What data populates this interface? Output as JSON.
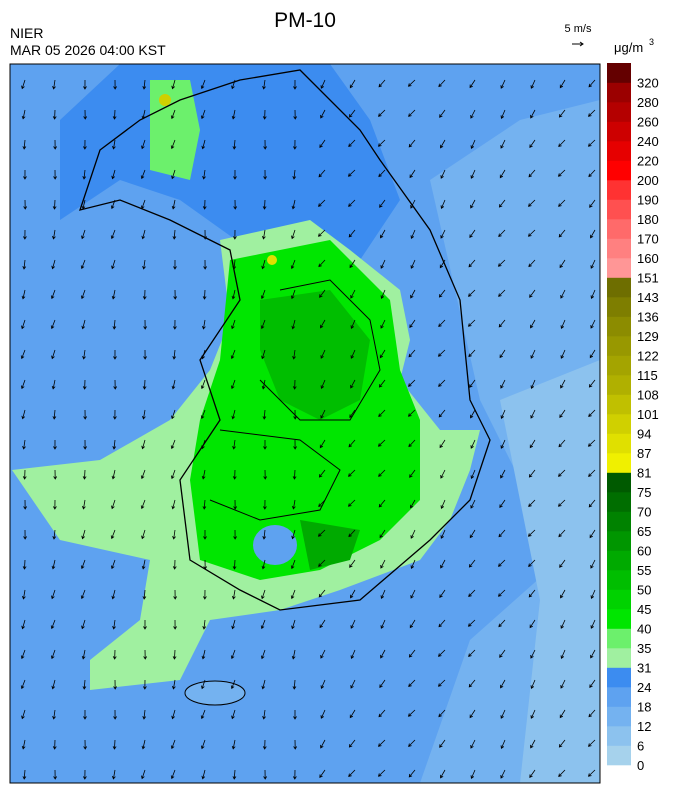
{
  "header": {
    "title": "PM-10",
    "agency": "NIER",
    "datetime": "MAR 05 2026 04:00 KST",
    "wind_scale": "5 m/s",
    "unit": "μg/m",
    "unit_superscript": "3"
  },
  "colorbar": {
    "levels": [
      0,
      6,
      12,
      18,
      24,
      31,
      35,
      40,
      45,
      50,
      55,
      60,
      65,
      70,
      75,
      81,
      87,
      94,
      101,
      108,
      115,
      122,
      129,
      136,
      143,
      151,
      160,
      170,
      180,
      190,
      200,
      220,
      240,
      260,
      280,
      320
    ],
    "colors": [
      "#a6d2ec",
      "#8cc2ee",
      "#74b2f0",
      "#5ea2f0",
      "#3c8cf0",
      "#a0f0a0",
      "#6cf06c",
      "#00e600",
      "#00d200",
      "#00be00",
      "#00aa00",
      "#009600",
      "#008200",
      "#006e00",
      "#005a00",
      "#f0f000",
      "#e0e000",
      "#d0d000",
      "#c0c000",
      "#b0b000",
      "#a4a400",
      "#989800",
      "#8c8c00",
      "#7e7e00",
      "#6e6e00",
      "#ff9696",
      "#ff8080",
      "#ff6a6a",
      "#ff5050",
      "#ff3232",
      "#ff0000",
      "#e60000",
      "#cd0000",
      "#b40000",
      "#9b0000",
      "#640000"
    ]
  }
}
